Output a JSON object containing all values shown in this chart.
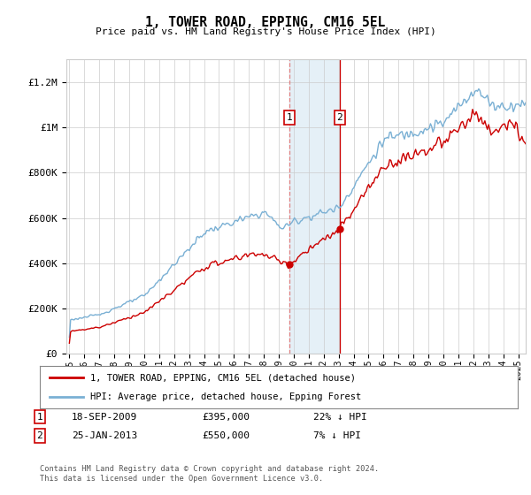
{
  "title": "1, TOWER ROAD, EPPING, CM16 5EL",
  "subtitle": "Price paid vs. HM Land Registry's House Price Index (HPI)",
  "ylabel_ticks": [
    "£0",
    "£200K",
    "£400K",
    "£600K",
    "£800K",
    "£1M",
    "£1.2M"
  ],
  "ytick_values": [
    0,
    200000,
    400000,
    600000,
    800000,
    1000000,
    1200000
  ],
  "ylim": [
    0,
    1300000
  ],
  "xlim_start": 1994.8,
  "xlim_end": 2025.5,
  "transaction1_x": 2009.72,
  "transaction1_y": 395000,
  "transaction1_label": "18-SEP-2009",
  "transaction1_price": "£395,000",
  "transaction1_hpi": "22% ↓ HPI",
  "transaction2_x": 2013.07,
  "transaction2_y": 550000,
  "transaction2_label": "25-JAN-2013",
  "transaction2_price": "£550,000",
  "transaction2_hpi": "7% ↓ HPI",
  "shaded_start": 2009.72,
  "shaded_end": 2013.07,
  "line1_color": "#cc0000",
  "line2_color": "#7ab0d4",
  "legend_line1": "1, TOWER ROAD, EPPING, CM16 5EL (detached house)",
  "legend_line2": "HPI: Average price, detached house, Epping Forest",
  "footnote": "Contains HM Land Registry data © Crown copyright and database right 2024.\nThis data is licensed under the Open Government Licence v3.0.",
  "background_color": "#ffffff",
  "grid_color": "#cccccc",
  "xtick_years": [
    1995,
    1996,
    1997,
    1998,
    1999,
    2000,
    2001,
    2002,
    2003,
    2004,
    2005,
    2006,
    2007,
    2008,
    2009,
    2010,
    2011,
    2012,
    2013,
    2014,
    2015,
    2016,
    2017,
    2018,
    2019,
    2020,
    2021,
    2022,
    2023,
    2024,
    2025
  ]
}
